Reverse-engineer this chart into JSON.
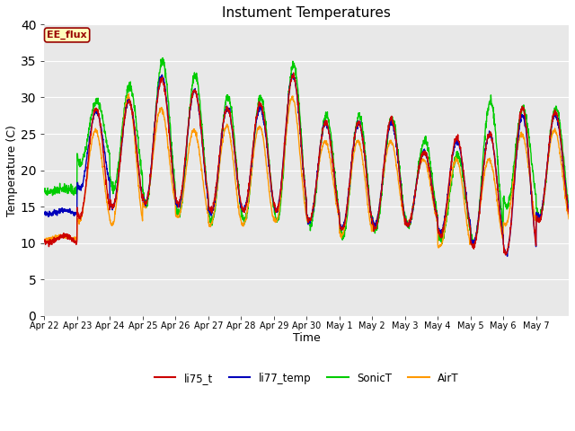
{
  "title": "Instument Temperatures",
  "xlabel": "Time",
  "ylabel": "Temperature (C)",
  "ylim": [
    0,
    40
  ],
  "bg_color": "#e8e8e8",
  "fig_color": "#ffffff",
  "line_colors": {
    "li75_t": "#cc0000",
    "li77_temp": "#0000bb",
    "SonicT": "#00cc00",
    "AirT": "#ff9900"
  },
  "xtick_labels": [
    "Apr 22",
    "Apr 23",
    "Apr 24",
    "Apr 25",
    "Apr 26",
    "Apr 27",
    "Apr 28",
    "Apr 29",
    "Apr 30",
    "May 1",
    "May 2",
    "May 3",
    "May 4",
    "May 5",
    "May 6",
    "May 7"
  ],
  "annotation_text": "EE_flux",
  "annotation_bg": "#ffffbb",
  "annotation_edge": "#990000",
  "n_days": 16,
  "li75_t_mins": [
    10.0,
    13.5,
    15.0,
    15.5,
    15.5,
    14.5,
    14.5,
    14.5,
    13.0,
    12.0,
    12.0,
    12.5,
    11.0,
    9.5,
    8.5,
    13.0
  ],
  "li75_t_maxs": [
    11.0,
    28.5,
    29.5,
    32.5,
    31.0,
    28.5,
    29.0,
    33.0,
    26.5,
    26.5,
    27.0,
    22.5,
    24.5,
    25.0,
    28.5,
    28.0
  ],
  "li77_min": [
    14.0,
    17.5,
    15.0,
    15.5,
    15.0,
    14.0,
    14.5,
    14.5,
    13.0,
    12.0,
    12.5,
    12.5,
    11.5,
    10.0,
    8.5,
    13.5
  ],
  "li77_max": [
    14.5,
    28.0,
    29.5,
    33.0,
    31.0,
    28.5,
    28.5,
    33.0,
    26.5,
    26.5,
    26.5,
    22.5,
    24.0,
    25.0,
    27.5,
    27.5
  ],
  "sonic_mins": [
    17.0,
    21.0,
    17.5,
    15.5,
    14.0,
    13.0,
    13.0,
    13.0,
    12.5,
    11.0,
    12.0,
    12.5,
    10.5,
    10.0,
    15.0,
    13.5
  ],
  "sonic_maxs": [
    17.5,
    29.5,
    31.5,
    35.0,
    33.0,
    30.0,
    30.0,
    34.5,
    27.5,
    27.5,
    27.0,
    24.0,
    22.0,
    29.5,
    28.5,
    28.5
  ],
  "air_mins": [
    10.5,
    13.0,
    12.5,
    15.0,
    13.5,
    12.5,
    12.5,
    13.0,
    13.0,
    11.0,
    12.5,
    12.5,
    9.5,
    10.0,
    12.5,
    13.0
  ],
  "air_maxs": [
    11.0,
    25.5,
    30.0,
    28.5,
    25.5,
    26.0,
    26.0,
    30.0,
    24.0,
    24.0,
    24.0,
    21.5,
    21.5,
    21.5,
    25.0,
    25.5
  ],
  "pts_per_day": 144
}
